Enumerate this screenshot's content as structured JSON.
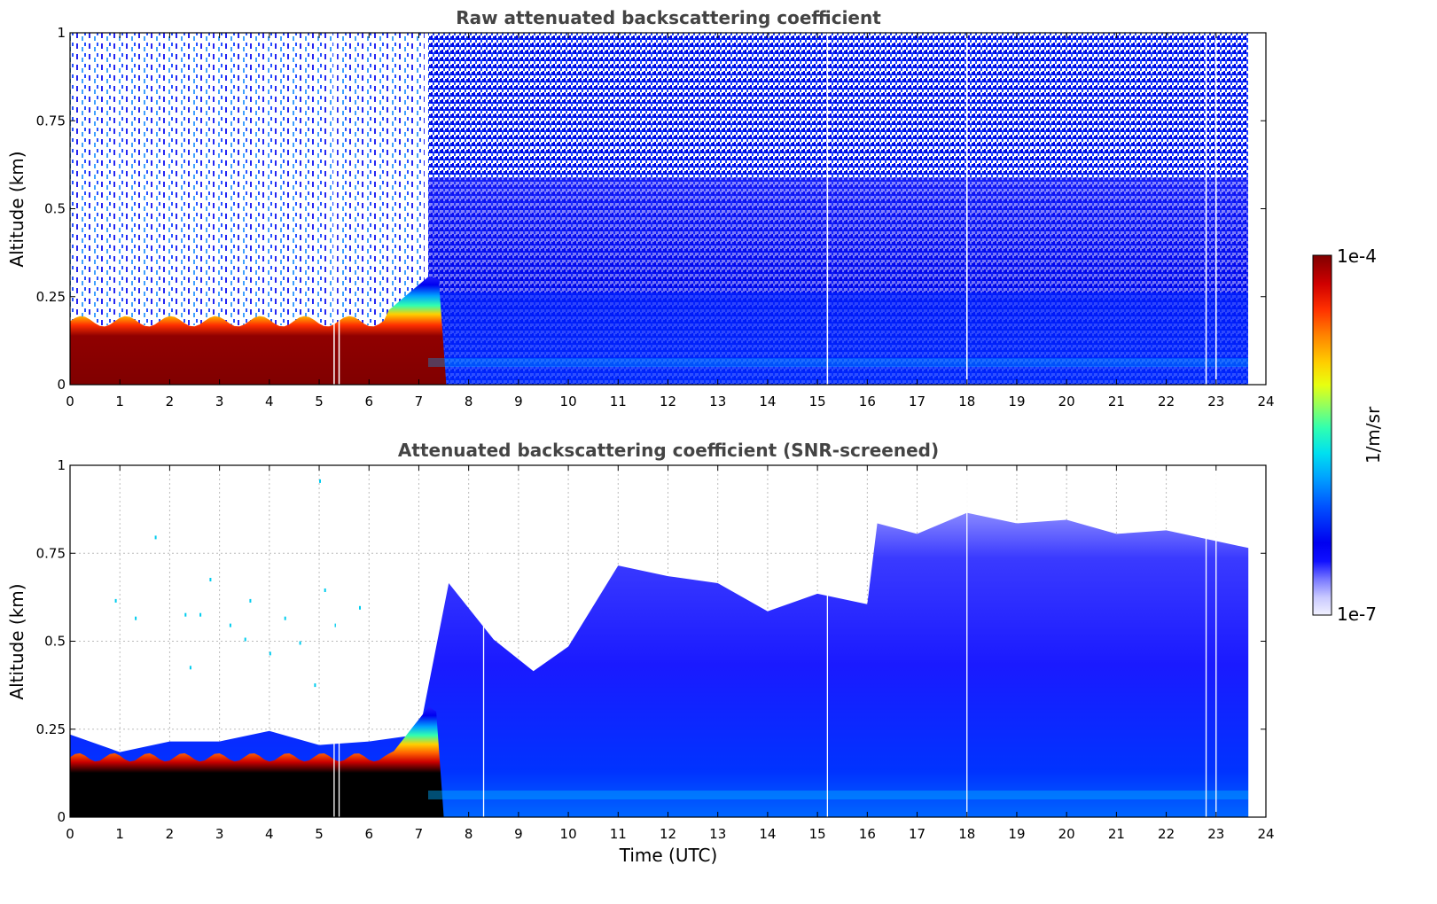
{
  "chart_data": [
    {
      "type": "heatmap",
      "title": "Raw attenuated backscattering coefficient",
      "xlabel": "",
      "ylabel": "Altitude (km)",
      "xlim": [
        0,
        24
      ],
      "ylim": [
        0,
        1
      ],
      "x_ticks": [
        "0",
        "1",
        "2",
        "3",
        "4",
        "5",
        "6",
        "7",
        "8",
        "9",
        "10",
        "11",
        "12",
        "13",
        "14",
        "15",
        "16",
        "17",
        "18",
        "19",
        "20",
        "21",
        "22",
        "23",
        "24"
      ],
      "y_ticks": [
        "0",
        "0.25",
        "0.5",
        "0.75",
        "1"
      ],
      "grid": false,
      "features": {
        "data_end_hour": 23.65,
        "bright_layer_until_hour": 7.2,
        "bright_layer_top_km": 0.2,
        "vertical_gaps_hours": [
          5.3,
          5.4,
          15.2,
          18.0,
          22.8,
          23.0
        ]
      }
    },
    {
      "type": "heatmap",
      "title": "Attenuated backscattering coefficient (SNR-screened)",
      "xlabel": "Time (UTC)",
      "ylabel": "Altitude (km)",
      "xlim": [
        0,
        24
      ],
      "ylim": [
        0,
        1
      ],
      "x_ticks": [
        "0",
        "1",
        "2",
        "3",
        "4",
        "5",
        "6",
        "7",
        "8",
        "9",
        "10",
        "11",
        "12",
        "13",
        "14",
        "15",
        "16",
        "17",
        "18",
        "19",
        "20",
        "21",
        "22",
        "23",
        "24"
      ],
      "y_ticks": [
        "0",
        "0.25",
        "0.5",
        "0.75",
        "1"
      ],
      "grid": true,
      "features": {
        "data_end_hour": 23.65,
        "layer_top_km": [
          [
            0,
            0.22
          ],
          [
            1,
            0.2
          ],
          [
            2,
            0.2
          ],
          [
            3,
            0.23
          ],
          [
            4,
            0.23
          ],
          [
            5,
            0.22
          ],
          [
            6,
            0.2
          ],
          [
            7,
            0.25
          ],
          [
            7.6,
            0.65
          ],
          [
            8.5,
            0.52
          ],
          [
            9.3,
            0.4
          ],
          [
            10,
            0.5
          ],
          [
            11,
            0.7
          ],
          [
            12,
            0.7
          ],
          [
            13,
            0.65
          ],
          [
            14,
            0.6
          ],
          [
            15,
            0.62
          ],
          [
            16,
            0.62
          ],
          [
            16.2,
            0.82
          ],
          [
            17,
            0.82
          ],
          [
            18,
            0.85
          ],
          [
            19,
            0.85
          ],
          [
            20,
            0.83
          ],
          [
            21,
            0.82
          ],
          [
            22,
            0.8
          ],
          [
            23.65,
            0.78
          ]
        ]
      }
    }
  ],
  "colorbar": {
    "label": "1/m/sr",
    "max_label": "1e-4",
    "min_label": "1e-7",
    "colors": [
      "#eeeeff",
      "#ccccff",
      "#aaaaff",
      "#6666ff",
      "#2222ff",
      "#0000ee",
      "#0022ff",
      "#0066ff",
      "#00aaff",
      "#00ddee",
      "#22ffbb",
      "#88ff66",
      "#ddff11",
      "#ffdd00",
      "#ffaa00",
      "#ff6600",
      "#ee2200",
      "#cc0000",
      "#880000"
    ]
  }
}
